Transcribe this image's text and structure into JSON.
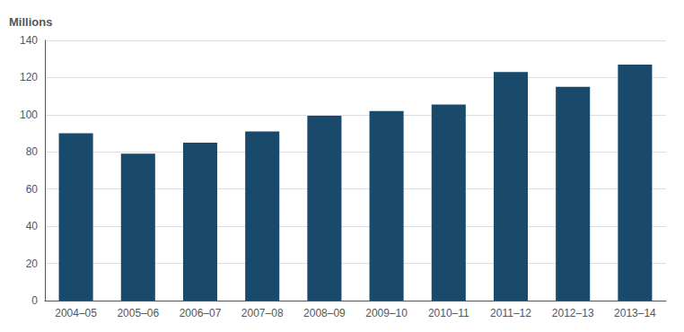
{
  "chart_data": {
    "type": "bar",
    "categories": [
      "2004–05",
      "2005–06",
      "2006–07",
      "2007–08",
      "2008–09",
      "2009–10",
      "2010–11",
      "2011–12",
      "2012–13",
      "2013–14"
    ],
    "values": [
      90,
      79,
      85,
      91,
      99.5,
      102,
      105.5,
      123,
      115,
      127
    ],
    "color": "#1a4a6b",
    "ylabel": "Millions",
    "ylim": [
      0,
      140
    ],
    "yticks": [
      0,
      20,
      40,
      60,
      80,
      100,
      120,
      140
    ],
    "grid": true
  }
}
